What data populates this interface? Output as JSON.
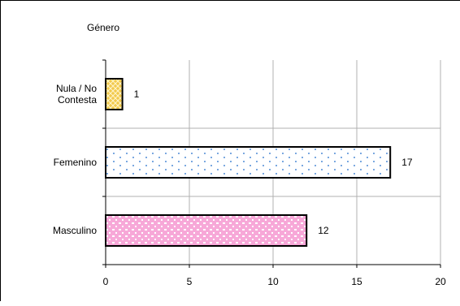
{
  "chart_data": {
    "type": "bar",
    "orientation": "horizontal",
    "title": "Género",
    "categories": [
      "Nula / No Contesta",
      "Femenino",
      "Masculino"
    ],
    "category_lines": [
      [
        "Nula / No",
        "Contesta"
      ],
      [
        "Femenino"
      ],
      [
        "Masculino"
      ]
    ],
    "values": [
      1,
      17,
      12
    ],
    "data_labels": [
      "1",
      "17",
      "12"
    ],
    "xlim": [
      0,
      20
    ],
    "xticks": [
      0,
      5,
      10,
      15,
      20
    ],
    "xtick_labels": [
      "0",
      "5",
      "10",
      "15",
      "20"
    ],
    "grid": true,
    "legend": "none",
    "bar_styles": [
      {
        "fill": "#f2c94c",
        "pattern": "diamond-crosshatch",
        "pattern_color": "#ffffff"
      },
      {
        "fill": "#ffffff",
        "pattern": "dots",
        "pattern_color": "#7aa8e0"
      },
      {
        "fill": "#f7a8d8",
        "pattern": "confetti",
        "pattern_color": "#ffffff"
      }
    ]
  }
}
